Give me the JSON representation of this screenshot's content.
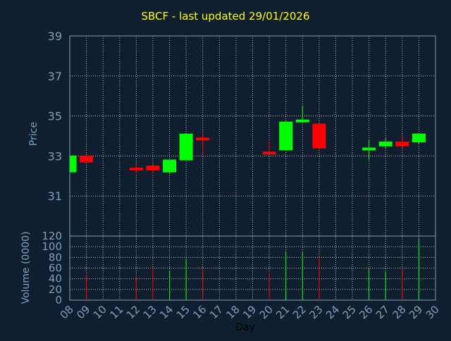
{
  "title": "SBCF - last updated 29/01/2026",
  "colors": {
    "background": "#0f1f2f",
    "grid": "#ffffff",
    "axis_text": "#7f9fbf",
    "title": "#ffff00",
    "up": "#00ff00",
    "down": "#ff0000"
  },
  "chart_data": [
    {
      "type": "candlestick",
      "ylabel": "Price",
      "ylim": [
        29,
        39
      ],
      "yticks": [
        31,
        33,
        35,
        37,
        39
      ],
      "grid": true,
      "series": [
        {
          "day": "08",
          "open": 32.2,
          "high": 33.0,
          "low": 32.2,
          "close": 33.0
        },
        {
          "day": "09",
          "open": 33.0,
          "high": 33.0,
          "low": 32.7,
          "close": 32.7
        },
        {
          "day": "12",
          "open": 32.4,
          "high": 32.6,
          "low": 32.1,
          "close": 32.3
        },
        {
          "day": "13",
          "open": 32.5,
          "high": 32.5,
          "low": 32.1,
          "close": 32.3
        },
        {
          "day": "14",
          "open": 32.2,
          "high": 32.8,
          "low": 32.1,
          "close": 32.8
        },
        {
          "day": "15",
          "open": 32.8,
          "high": 34.1,
          "low": 32.8,
          "close": 34.1
        },
        {
          "day": "16",
          "open": 33.9,
          "high": 34.2,
          "low": 33.1,
          "close": 33.8
        },
        {
          "day": "20",
          "open": 33.2,
          "high": 33.7,
          "low": 33.1,
          "close": 33.1
        },
        {
          "day": "21",
          "open": 33.3,
          "high": 34.7,
          "low": 33.3,
          "close": 34.7
        },
        {
          "day": "22",
          "open": 34.7,
          "high": 35.5,
          "low": 34.7,
          "close": 34.8
        },
        {
          "day": "23",
          "open": 34.6,
          "high": 34.6,
          "low": 33.4,
          "close": 33.4
        },
        {
          "day": "26",
          "open": 33.3,
          "high": 33.8,
          "low": 32.8,
          "close": 33.4
        },
        {
          "day": "27",
          "open": 33.5,
          "high": 33.9,
          "low": 33.4,
          "close": 33.7
        },
        {
          "day": "28",
          "open": 33.7,
          "high": 34.1,
          "low": 33.4,
          "close": 33.5
        },
        {
          "day": "29",
          "open": 33.7,
          "high": 34.1,
          "low": 33.6,
          "close": 34.1
        }
      ]
    },
    {
      "type": "bar",
      "ylabel": "Volume (0000)",
      "xlabel": "Day",
      "ylim": [
        0,
        120
      ],
      "yticks": [
        0,
        20,
        40,
        60,
        80,
        100,
        120
      ],
      "grid": true,
      "categories": [
        "08",
        "09",
        "10",
        "11",
        "12",
        "13",
        "14",
        "15",
        "16",
        "17",
        "18",
        "19",
        "20",
        "21",
        "22",
        "23",
        "24",
        "25",
        "26",
        "27",
        "28",
        "29",
        "30"
      ],
      "bars": [
        {
          "day": "09",
          "value": 48,
          "dir": "down"
        },
        {
          "day": "12",
          "value": 44,
          "dir": "down"
        },
        {
          "day": "13",
          "value": 62,
          "dir": "down"
        },
        {
          "day": "14",
          "value": 55,
          "dir": "up"
        },
        {
          "day": "15",
          "value": 77,
          "dir": "up"
        },
        {
          "day": "16",
          "value": 62,
          "dir": "down"
        },
        {
          "day": "20",
          "value": 52,
          "dir": "down"
        },
        {
          "day": "21",
          "value": 90,
          "dir": "up"
        },
        {
          "day": "22",
          "value": 90,
          "dir": "up"
        },
        {
          "day": "23",
          "value": 82,
          "dir": "down"
        },
        {
          "day": "26",
          "value": 58,
          "dir": "up"
        },
        {
          "day": "27",
          "value": 53,
          "dir": "up"
        },
        {
          "day": "28",
          "value": 60,
          "dir": "down"
        },
        {
          "day": "29",
          "value": 115,
          "dir": "up"
        }
      ]
    }
  ]
}
